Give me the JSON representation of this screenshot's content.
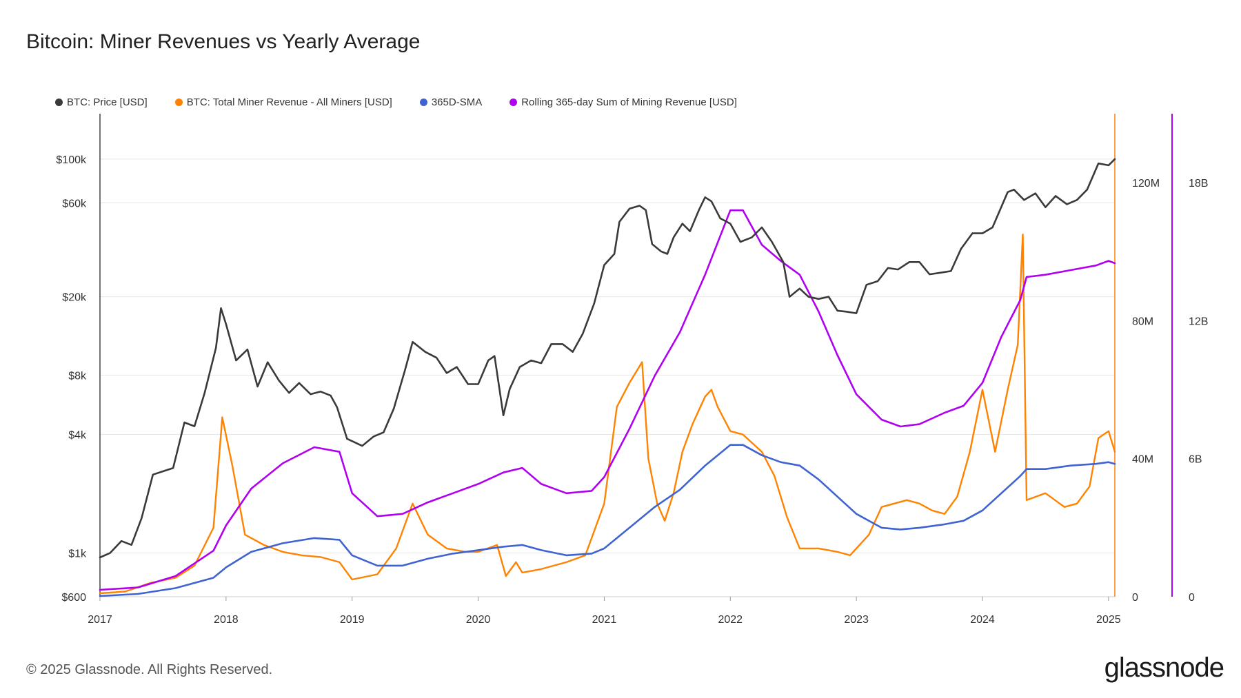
{
  "header": {
    "title": "Bitcoin: Miner Revenues vs Yearly Average"
  },
  "footer": {
    "copyright": "© 2025 Glassnode. All Rights Reserved.",
    "brand": "glassnode"
  },
  "chart_data": {
    "type": "line",
    "title": "Bitcoin: Miner Revenues vs Yearly Average",
    "legend_position": "top-left",
    "grid": true,
    "colors": {
      "price": "#3a3a3a",
      "revenue": "#ff8200",
      "sma": "#3f63d1",
      "rolling": "#b000f0"
    },
    "x_ticks": [
      "2017",
      "2018",
      "2019",
      "2020",
      "2021",
      "2022",
      "2023",
      "2024",
      "2025"
    ],
    "x_range": [
      2017.0,
      2025.05
    ],
    "left_axis": {
      "label": "",
      "scale": "log",
      "range": [
        600,
        170000
      ],
      "ticks": [
        "$100k",
        "$60k",
        "$20k",
        "$8k",
        "$4k",
        "$1k",
        "$600"
      ],
      "tick_values": [
        100000,
        60000,
        20000,
        8000,
        4000,
        1000,
        600
      ]
    },
    "right_axis_1": {
      "label": "",
      "scale": "linear",
      "range": [
        0,
        140000000
      ],
      "ticks": [
        "120M",
        "80M",
        "40M",
        "0"
      ],
      "tick_values": [
        120000000,
        80000000,
        40000000,
        0
      ]
    },
    "right_axis_2": {
      "label": "",
      "scale": "linear",
      "range": [
        0,
        21000000000
      ],
      "ticks": [
        "18B",
        "12B",
        "6B",
        "0"
      ],
      "tick_values": [
        18000000000,
        12000000000,
        6000000000,
        0
      ]
    },
    "series": [
      {
        "name": "BTC: Price [USD]",
        "axis": "left",
        "x": [
          2017.0,
          2017.08,
          2017.17,
          2017.25,
          2017.33,
          2017.42,
          2017.5,
          2017.58,
          2017.67,
          2017.75,
          2017.83,
          2017.92,
          2017.96,
          2018.0,
          2018.08,
          2018.17,
          2018.25,
          2018.33,
          2018.42,
          2018.5,
          2018.58,
          2018.67,
          2018.75,
          2018.83,
          2018.88,
          2018.96,
          2019.0,
          2019.08,
          2019.17,
          2019.25,
          2019.33,
          2019.42,
          2019.48,
          2019.58,
          2019.67,
          2019.75,
          2019.83,
          2019.92,
          2020.0,
          2020.08,
          2020.13,
          2020.2,
          2020.25,
          2020.33,
          2020.42,
          2020.5,
          2020.58,
          2020.67,
          2020.75,
          2020.83,
          2020.92,
          2021.0,
          2021.08,
          2021.12,
          2021.2,
          2021.28,
          2021.33,
          2021.38,
          2021.45,
          2021.5,
          2021.55,
          2021.62,
          2021.68,
          2021.75,
          2021.8,
          2021.85,
          2021.92,
          2022.0,
          2022.08,
          2022.17,
          2022.25,
          2022.33,
          2022.42,
          2022.47,
          2022.55,
          2022.62,
          2022.7,
          2022.78,
          2022.85,
          2022.92,
          2023.0,
          2023.08,
          2023.17,
          2023.25,
          2023.33,
          2023.42,
          2023.5,
          2023.58,
          2023.67,
          2023.75,
          2023.83,
          2023.92,
          2024.0,
          2024.08,
          2024.2,
          2024.25,
          2024.33,
          2024.42,
          2024.5,
          2024.58,
          2024.67,
          2024.75,
          2024.83,
          2024.92,
          2025.0,
          2025.05
        ],
        "values": [
          950,
          1000,
          1150,
          1100,
          1500,
          2500,
          2600,
          2700,
          4600,
          4400,
          6500,
          11000,
          17500,
          14500,
          9500,
          10800,
          7000,
          9300,
          7500,
          6500,
          7300,
          6400,
          6600,
          6300,
          5500,
          3800,
          3700,
          3500,
          3900,
          4100,
          5400,
          8500,
          11800,
          10500,
          9800,
          8200,
          8800,
          7200,
          7200,
          9500,
          10000,
          5000,
          6800,
          8800,
          9500,
          9200,
          11500,
          11500,
          10500,
          13000,
          18500,
          29000,
          33000,
          48000,
          56000,
          58000,
          55000,
          37000,
          34000,
          33000,
          40000,
          47000,
          43000,
          55000,
          64000,
          61000,
          50000,
          47000,
          38000,
          40000,
          45000,
          38000,
          30000,
          20000,
          22000,
          20000,
          19500,
          20000,
          17000,
          16800,
          16500,
          23000,
          24000,
          28000,
          27500,
          30000,
          30000,
          26000,
          26500,
          27000,
          35000,
          42000,
          42000,
          45000,
          68000,
          70000,
          62000,
          67000,
          57000,
          65000,
          59000,
          62000,
          70000,
          95000,
          93000,
          100000
        ]
      },
      {
        "name": "BTC: Total Miner Revenue - All Miners [USD]",
        "axis": "right_1",
        "x": [
          2017.0,
          2017.2,
          2017.4,
          2017.6,
          2017.75,
          2017.9,
          2017.97,
          2018.05,
          2018.15,
          2018.3,
          2018.45,
          2018.6,
          2018.75,
          2018.9,
          2019.0,
          2019.2,
          2019.35,
          2019.48,
          2019.6,
          2019.75,
          2019.9,
          2020.0,
          2020.15,
          2020.22,
          2020.3,
          2020.35,
          2020.5,
          2020.7,
          2020.85,
          2021.0,
          2021.1,
          2021.2,
          2021.3,
          2021.35,
          2021.42,
          2021.48,
          2021.55,
          2021.62,
          2021.7,
          2021.8,
          2021.85,
          2021.9,
          2022.0,
          2022.1,
          2022.25,
          2022.35,
          2022.45,
          2022.55,
          2022.7,
          2022.85,
          2022.95,
          2023.0,
          2023.1,
          2023.2,
          2023.3,
          2023.4,
          2023.5,
          2023.6,
          2023.7,
          2023.8,
          2023.9,
          2024.0,
          2024.1,
          2024.2,
          2024.28,
          2024.32,
          2024.35,
          2024.5,
          2024.65,
          2024.75,
          2024.85,
          2024.92,
          2025.0,
          2025.05
        ],
        "values": [
          1000000,
          1500000,
          4000000,
          5500000,
          9000000,
          20000000,
          52000000,
          38000000,
          18000000,
          15000000,
          13000000,
          12000000,
          11500000,
          10000000,
          5000000,
          6500000,
          14000000,
          27000000,
          18000000,
          14000000,
          13000000,
          13000000,
          15000000,
          6000000,
          10000000,
          7000000,
          8000000,
          10000000,
          12000000,
          27000000,
          55000000,
          62000000,
          68000000,
          40000000,
          27000000,
          22000000,
          30000000,
          42000000,
          50000000,
          58000000,
          60000000,
          55000000,
          48000000,
          47000000,
          42000000,
          35000000,
          23000000,
          14000000,
          14000000,
          13000000,
          12000000,
          14000000,
          18000000,
          26000000,
          27000000,
          28000000,
          27000000,
          25000000,
          24000000,
          29000000,
          42000000,
          60000000,
          42000000,
          60000000,
          73000000,
          105000000,
          28000000,
          30000000,
          26000000,
          27000000,
          32000000,
          46000000,
          48000000,
          42000000
        ]
      },
      {
        "name": "365D-SMA",
        "axis": "right_1",
        "x": [
          2017.0,
          2017.3,
          2017.6,
          2017.9,
          2018.0,
          2018.2,
          2018.45,
          2018.7,
          2018.9,
          2019.0,
          2019.2,
          2019.4,
          2019.6,
          2019.8,
          2020.0,
          2020.2,
          2020.35,
          2020.5,
          2020.7,
          2020.9,
          2021.0,
          2021.2,
          2021.4,
          2021.6,
          2021.8,
          2022.0,
          2022.1,
          2022.25,
          2022.4,
          2022.55,
          2022.7,
          2022.85,
          2023.0,
          2023.2,
          2023.35,
          2023.5,
          2023.7,
          2023.85,
          2024.0,
          2024.15,
          2024.3,
          2024.35,
          2024.5,
          2024.7,
          2024.9,
          2025.0,
          2025.05
        ],
        "values": [
          200000,
          800000,
          2500000,
          5500000,
          8500000,
          13000000,
          15500000,
          17000000,
          16500000,
          12000000,
          9000000,
          9000000,
          11000000,
          12500000,
          13500000,
          14500000,
          15000000,
          13500000,
          12000000,
          12500000,
          14000000,
          20000000,
          26000000,
          31000000,
          38000000,
          44000000,
          44000000,
          41000000,
          39000000,
          38000000,
          34000000,
          29000000,
          24000000,
          20000000,
          19500000,
          20000000,
          21000000,
          22000000,
          25000000,
          30000000,
          35000000,
          37000000,
          37000000,
          38000000,
          38500000,
          39000000,
          38500000
        ]
      },
      {
        "name": "Rolling 365-day Sum of Mining Revenue [USD]",
        "axis": "right_2",
        "x": [
          2017.0,
          2017.3,
          2017.6,
          2017.9,
          2018.0,
          2018.2,
          2018.45,
          2018.7,
          2018.9,
          2019.0,
          2019.2,
          2019.4,
          2019.6,
          2019.8,
          2020.0,
          2020.2,
          2020.35,
          2020.5,
          2020.7,
          2020.9,
          2021.0,
          2021.2,
          2021.4,
          2021.6,
          2021.8,
          2022.0,
          2022.1,
          2022.25,
          2022.4,
          2022.55,
          2022.7,
          2022.85,
          2023.0,
          2023.2,
          2023.35,
          2023.5,
          2023.7,
          2023.85,
          2024.0,
          2024.15,
          2024.3,
          2024.35,
          2024.5,
          2024.7,
          2024.9,
          2025.0,
          2025.05
        ],
        "values": [
          300000000,
          400000000,
          900000000,
          2000000000,
          3100000000,
          4700000000,
          5800000000,
          6500000000,
          6300000000,
          4500000000,
          3500000000,
          3600000000,
          4100000000,
          4500000000,
          4900000000,
          5400000000,
          5600000000,
          4900000000,
          4500000000,
          4600000000,
          5200000000,
          7300000000,
          9600000000,
          11500000000,
          14000000000,
          16800000000,
          16800000000,
          15300000000,
          14600000000,
          14000000000,
          12400000000,
          10500000000,
          8800000000,
          7700000000,
          7400000000,
          7500000000,
          8000000000,
          8300000000,
          9300000000,
          11300000000,
          12900000000,
          13900000000,
          14000000000,
          14200000000,
          14400000000,
          14600000000,
          14500000000
        ]
      }
    ]
  }
}
